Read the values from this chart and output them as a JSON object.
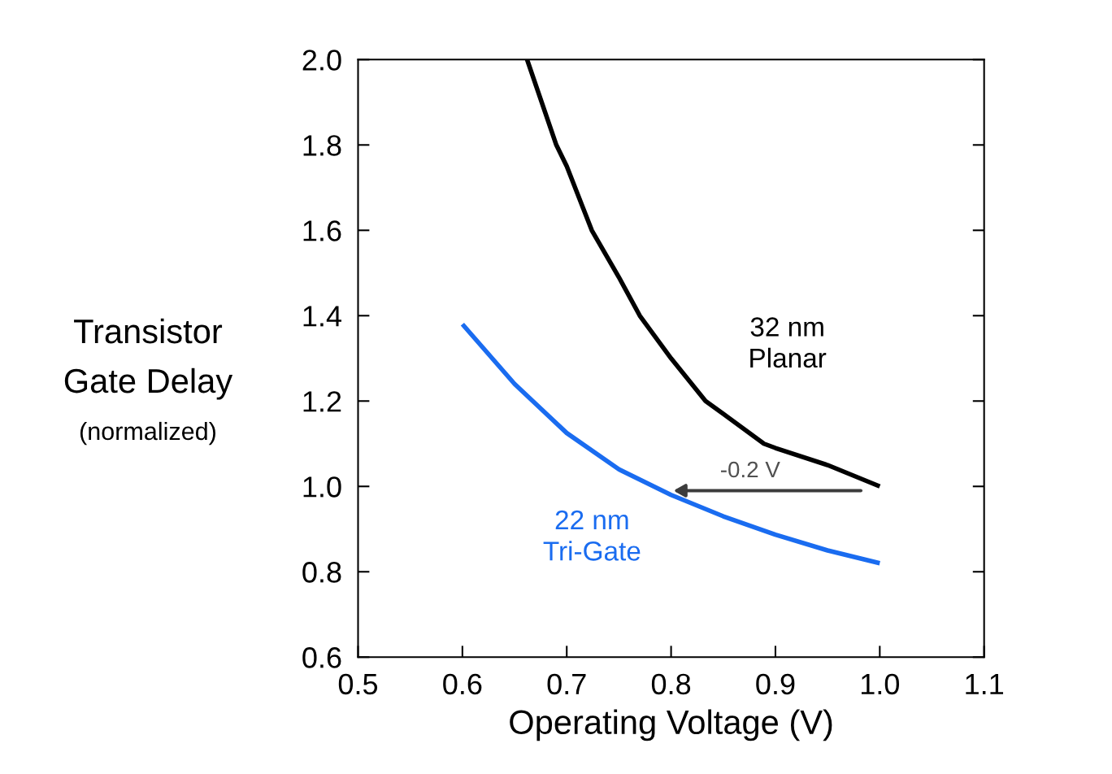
{
  "chart_data": {
    "type": "line",
    "xlabel": "Operating Voltage (V)",
    "ylabel": "Transistor\nGate Delay\n(normalized)",
    "xlim": [
      0.5,
      1.1
    ],
    "xticks": [
      {
        "value": 0.5,
        "label": "0.5"
      },
      {
        "value": 0.6,
        "label": "0.6"
      },
      {
        "value": 0.7,
        "label": "0.7"
      },
      {
        "value": 0.8,
        "label": "0.8"
      },
      {
        "value": 0.9,
        "label": "0.9"
      },
      {
        "value": 1.0,
        "label": "1.0"
      },
      {
        "value": 1.1,
        "label": "1.1"
      }
    ],
    "ylim": [
      0.6,
      2.0
    ],
    "yticks": [
      {
        "value": 0.6,
        "label": "0.6"
      },
      {
        "value": 0.8,
        "label": "0.8"
      },
      {
        "value": 1.0,
        "label": "1.0"
      },
      {
        "value": 1.2,
        "label": "1.2"
      },
      {
        "value": 1.4,
        "label": "1.4"
      },
      {
        "value": 1.6,
        "label": "1.6"
      },
      {
        "value": 1.8,
        "label": "1.8"
      },
      {
        "value": 2.0,
        "label": "2.0"
      }
    ],
    "series": [
      {
        "name": "32 nm\nPlanar",
        "color": "#000000",
        "x": [
          0.662,
          0.69,
          0.7,
          0.724,
          0.75,
          0.77,
          0.8,
          0.833,
          0.85,
          0.889,
          0.9,
          0.95,
          1.0
        ],
        "values": [
          2.0,
          1.8,
          1.75,
          1.6,
          1.49,
          1.4,
          1.3,
          1.2,
          1.17,
          1.1,
          1.09,
          1.05,
          1.0
        ]
      },
      {
        "name": "22 nm\nTri-Gate",
        "color": "#1a6cf0",
        "x": [
          0.6,
          0.65,
          0.7,
          0.75,
          0.8,
          0.85,
          0.9,
          0.95,
          1.0
        ],
        "values": [
          1.38,
          1.24,
          1.125,
          1.04,
          0.98,
          0.93,
          0.887,
          0.85,
          0.82
        ]
      }
    ],
    "annotations": [
      {
        "text": "-0.2 V",
        "x": 0.8,
        "y": 0.99
      }
    ],
    "grid": false,
    "legend": false,
    "marker": "none",
    "line_style": "solid"
  }
}
